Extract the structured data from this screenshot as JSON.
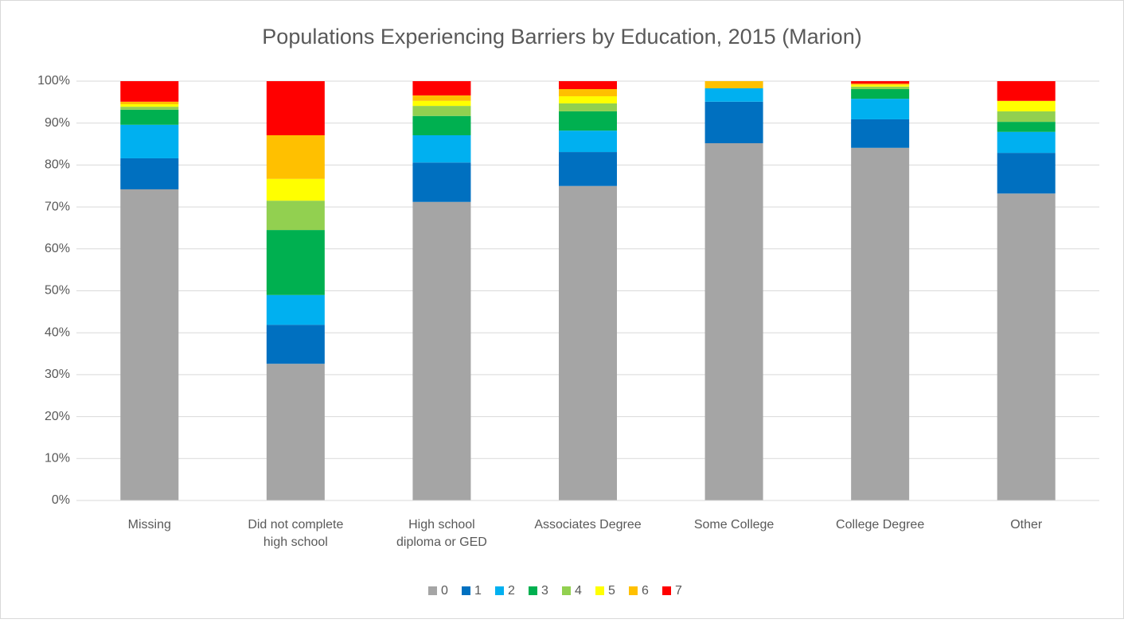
{
  "chart_data": {
    "type": "stacked_bar",
    "title": "Populations Experiencing Barriers by Education, 2015 (Marion)",
    "categories": [
      "Missing",
      "Did not complete high school",
      "High school diploma or GED",
      "Associates Degree",
      "Some College",
      "College Degree",
      "Other"
    ],
    "series": [
      {
        "name": "0",
        "color": "#a5a5a5",
        "values": [
          74.2,
          32.6,
          71.2,
          75.0,
          85.2,
          84.1,
          73.2
        ]
      },
      {
        "name": "1",
        "color": "#0070c0",
        "values": [
          7.4,
          9.3,
          9.4,
          8.1,
          9.9,
          6.8,
          9.7
        ]
      },
      {
        "name": "2",
        "color": "#00b0f0",
        "values": [
          8.0,
          7.1,
          6.5,
          5.1,
          3.2,
          4.9,
          5.0
        ]
      },
      {
        "name": "3",
        "color": "#00b050",
        "values": [
          3.6,
          15.5,
          4.6,
          4.6,
          0,
          2.3,
          2.4
        ]
      },
      {
        "name": "4",
        "color": "#92d050",
        "values": [
          0.7,
          7.0,
          2.4,
          1.9,
          0,
          0.6,
          2.5
        ]
      },
      {
        "name": "5",
        "color": "#ffff00",
        "values": [
          0.6,
          5.2,
          1.2,
          1.7,
          0,
          0.4,
          2.5
        ]
      },
      {
        "name": "6",
        "color": "#ffc000",
        "values": [
          0.6,
          10.4,
          1.3,
          1.7,
          1.7,
          0.3,
          0
        ]
      },
      {
        "name": "7",
        "color": "#ff0000",
        "values": [
          4.9,
          12.9,
          3.4,
          1.9,
          0,
          0.6,
          4.7
        ]
      }
    ],
    "ylim": [
      0,
      100
    ],
    "yticks": [
      {
        "value": 0,
        "label": "0%"
      },
      {
        "value": 10,
        "label": "10%"
      },
      {
        "value": 20,
        "label": "20%"
      },
      {
        "value": 30,
        "label": "30%"
      },
      {
        "value": 40,
        "label": "40%"
      },
      {
        "value": 50,
        "label": "50%"
      },
      {
        "value": 60,
        "label": "60%"
      },
      {
        "value": 70,
        "label": "70%"
      },
      {
        "value": 80,
        "label": "80%"
      },
      {
        "value": 90,
        "label": "90%"
      },
      {
        "value": 100,
        "label": "100%"
      }
    ],
    "grid": true,
    "legend": "bottom"
  }
}
